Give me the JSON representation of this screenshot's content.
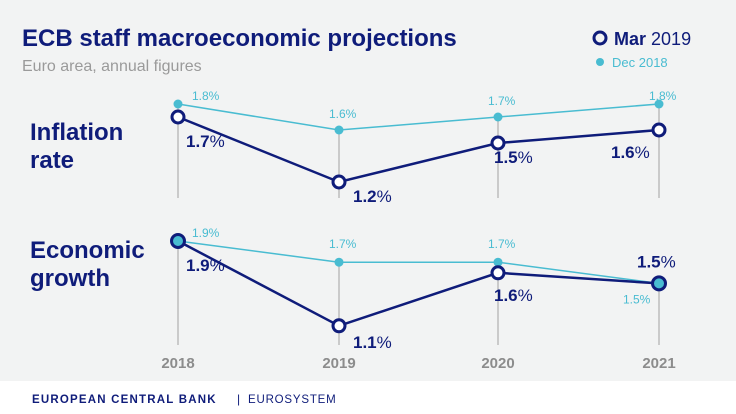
{
  "title": "ECB staff macroeconomic projections",
  "subtitle": "Euro area, annual figures",
  "legend": {
    "mar_bold": "Mar",
    "mar_year": "2019",
    "dec": "Dec 2018"
  },
  "footer": {
    "bank": "EUROPEAN CENTRAL BANK",
    "separator": "|",
    "system": "EUROSYSTEM"
  },
  "colors": {
    "mar": "#0f1c7a",
    "dec": "#49bcd1",
    "background": "#f2f3f3",
    "axis": "#bdbdbd"
  },
  "chart_data": [
    {
      "type": "line",
      "title": "Inflation rate",
      "title_lines": [
        "Inflation",
        "rate"
      ],
      "categories": [
        "2018",
        "2019",
        "2020",
        "2021"
      ],
      "series": [
        {
          "name": "Mar 2019",
          "values": [
            1.7,
            1.2,
            1.5,
            1.6
          ],
          "labels": [
            "1.7%",
            "1.2%",
            "1.5%",
            "1.6%"
          ]
        },
        {
          "name": "Dec 2018",
          "values": [
            1.8,
            1.6,
            1.7,
            1.8
          ],
          "labels": [
            "1.8%",
            "1.6%",
            "1.7%",
            "1.8%"
          ]
        }
      ]
    },
    {
      "type": "line",
      "title": "Economic growth",
      "title_lines": [
        "Economic",
        "growth"
      ],
      "categories": [
        "2018",
        "2019",
        "2020",
        "2021"
      ],
      "series": [
        {
          "name": "Mar 2019",
          "values": [
            1.9,
            1.1,
            1.6,
            1.5
          ],
          "labels": [
            "1.9%",
            "1.1%",
            "1.6%",
            "1.5%"
          ]
        },
        {
          "name": "Dec 2018",
          "values": [
            1.9,
            1.7,
            1.7,
            1.5
          ],
          "labels": [
            "1.9%",
            "1.7%",
            "1.7%",
            "1.5%"
          ]
        }
      ]
    }
  ]
}
